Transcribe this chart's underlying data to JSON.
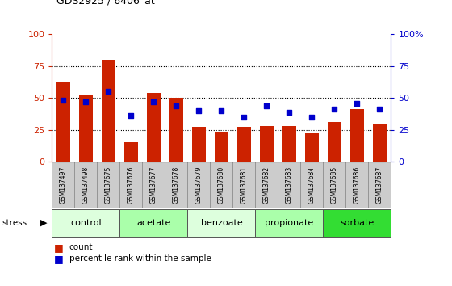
{
  "title": "GDS2925 / 6406_at",
  "samples": [
    "GSM137497",
    "GSM137498",
    "GSM137675",
    "GSM137676",
    "GSM137677",
    "GSM137678",
    "GSM137679",
    "GSM137680",
    "GSM137681",
    "GSM137682",
    "GSM137683",
    "GSM137684",
    "GSM137685",
    "GSM137686",
    "GSM137687"
  ],
  "bar_values": [
    62,
    53,
    80,
    15,
    54,
    50,
    27,
    23,
    27,
    28,
    28,
    22,
    31,
    41,
    30
  ],
  "dot_values": [
    48,
    47,
    55,
    36,
    47,
    44,
    40,
    40,
    35,
    44,
    39,
    35,
    41,
    46,
    41
  ],
  "bar_color": "#cc2200",
  "dot_color": "#0000cc",
  "groups": [
    {
      "label": "control",
      "start": 0,
      "end": 3,
      "color": "#ddffdd"
    },
    {
      "label": "acetate",
      "start": 3,
      "end": 6,
      "color": "#aaffaa"
    },
    {
      "label": "benzoate",
      "start": 6,
      "end": 9,
      "color": "#ddffdd"
    },
    {
      "label": "propionate",
      "start": 9,
      "end": 12,
      "color": "#aaffaa"
    },
    {
      "label": "sorbate",
      "start": 12,
      "end": 15,
      "color": "#33dd33"
    }
  ],
  "ylim": [
    0,
    100
  ],
  "yticks": [
    0,
    25,
    50,
    75,
    100
  ],
  "fig_bg": "#ffffff"
}
